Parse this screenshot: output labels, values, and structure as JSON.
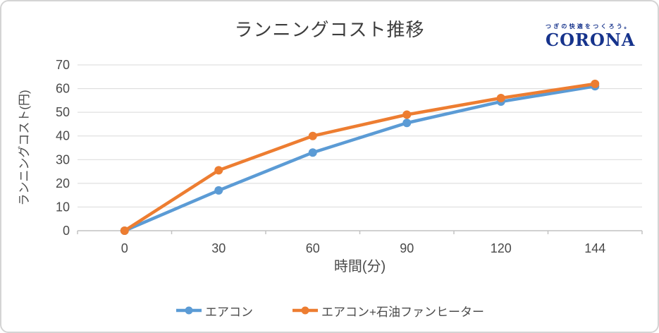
{
  "logo": {
    "tagline": "つぎの快適をつくろう。",
    "brand": "CORONA"
  },
  "chart_data": {
    "type": "line",
    "title": "ランニングコスト推移",
    "xlabel": "時間(分)",
    "ylabel": "ランニングコスト(円)",
    "x_axis_type": "category",
    "categories": [
      "0",
      "30",
      "60",
      "90",
      "120",
      "144"
    ],
    "series": [
      {
        "name": "エアコン",
        "color": "#5B9BD5",
        "values": [
          0,
          17,
          33,
          45.5,
          54.5,
          61
        ]
      },
      {
        "name": "エアコン+石油ファンヒーター",
        "color": "#ED7D31",
        "values": [
          0,
          25.5,
          40,
          49,
          56,
          62
        ]
      }
    ],
    "ylim": [
      0,
      70
    ],
    "ytick_step": 10,
    "grid": "horizontal",
    "legend_position": "bottom",
    "marker": "circle"
  },
  "theme": {
    "gridline_color": "#D9D9D9",
    "axis_line_color": "#C2C2C2",
    "tick_label_color": "#4a4a4a",
    "title_color": "#3d3d3d",
    "logo_color": "#16338C",
    "frame_border_color": "#D4D4D4",
    "background": "#FFFFFF"
  }
}
